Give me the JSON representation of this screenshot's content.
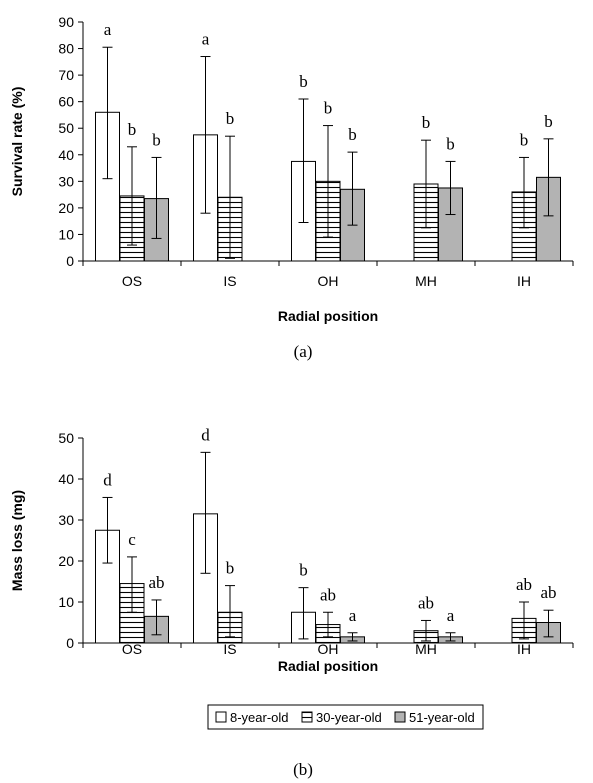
{
  "chart_data": [
    {
      "type": "bar",
      "panel_label": "(a)",
      "categories": [
        "OS",
        "IS",
        "OH",
        "MH",
        "IH"
      ],
      "ylabel": "Survival rate (%)",
      "xlabel": "Radial position",
      "ylim": [
        0,
        90
      ],
      "yticks": [
        0,
        10,
        20,
        30,
        40,
        50,
        60,
        70,
        80,
        90
      ],
      "series": [
        {
          "name": "8-year-old",
          "values": [
            56,
            47.5,
            37.5,
            null,
            null
          ],
          "err_low": [
            31,
            18,
            14.5,
            null,
            null
          ],
          "err_high": [
            80.5,
            77,
            61,
            null,
            null
          ],
          "letters": [
            "a",
            "a",
            "b",
            null,
            null
          ]
        },
        {
          "name": "30-year-old",
          "values": [
            24.5,
            24,
            30,
            29,
            26
          ],
          "err_low": [
            6,
            1,
            9,
            12.5,
            12.5
          ],
          "err_high": [
            43,
            47,
            51,
            45.5,
            39
          ],
          "letters": [
            "b",
            "b",
            "b",
            "b",
            "b"
          ]
        },
        {
          "name": "51-year-old",
          "values": [
            23.5,
            null,
            27,
            27.5,
            31.5
          ],
          "err_low": [
            8.5,
            null,
            13.5,
            17.5,
            17
          ],
          "err_high": [
            39,
            null,
            41,
            37.5,
            46
          ],
          "letters": [
            "b",
            null,
            "b",
            "b",
            "b"
          ]
        }
      ]
    },
    {
      "type": "bar",
      "panel_label": "(b)",
      "categories": [
        "OS",
        "IS",
        "OH",
        "MH",
        "IH"
      ],
      "ylabel": "Mass loss (mg)",
      "xlabel": "Radial position",
      "ylim": [
        0,
        50
      ],
      "yticks": [
        0,
        10,
        20,
        30,
        40,
        50
      ],
      "series": [
        {
          "name": "8-year-old",
          "values": [
            27.5,
            31.5,
            7.5,
            null,
            null
          ],
          "err_low": [
            19.5,
            17,
            1,
            null,
            null
          ],
          "err_high": [
            35.5,
            46.5,
            13.5,
            null,
            null
          ],
          "letters": [
            "d",
            "d",
            "b",
            null,
            null
          ]
        },
        {
          "name": "30-year-old",
          "values": [
            14.5,
            7.5,
            4.5,
            3,
            6
          ],
          "err_low": [
            7.5,
            1.5,
            1.5,
            0.5,
            1
          ],
          "err_high": [
            21,
            14,
            7.5,
            5.5,
            10
          ],
          "letters": [
            "c",
            "b",
            "ab",
            "ab",
            "ab"
          ]
        },
        {
          "name": "51-year-old",
          "values": [
            6.5,
            null,
            1.5,
            1.5,
            5
          ],
          "err_low": [
            2,
            null,
            0.5,
            0.5,
            1.5
          ],
          "err_high": [
            10.5,
            null,
            2.5,
            2.5,
            8
          ],
          "letters": [
            "ab",
            null,
            "a",
            "a",
            "ab"
          ]
        }
      ]
    }
  ],
  "legend": {
    "items": [
      {
        "label": "8-year-old",
        "pattern": "white"
      },
      {
        "label": "30-year-old",
        "pattern": "horizontal-lines"
      },
      {
        "label": "51-year-old",
        "pattern": "gray"
      }
    ]
  },
  "colors": {
    "bar_white": "#ffffff",
    "bar_gray": "#b3b3b3",
    "stroke": "#000000"
  }
}
